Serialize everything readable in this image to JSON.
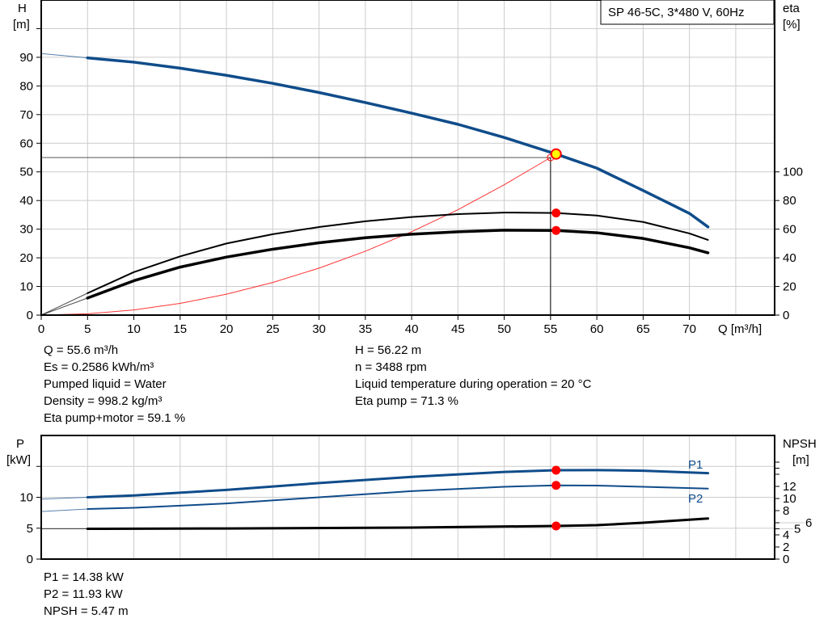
{
  "chart_data": [
    {
      "type": "line",
      "title": "SP 46-5C, 3*480 V, 60Hz",
      "xlabel": "Q [m³/h]",
      "ylabel_left": [
        "H",
        "[m]"
      ],
      "ylabel_right": [
        "eta",
        "[%]"
      ],
      "xlim": [
        0,
        79.2
      ],
      "ylim_left": [
        0,
        110
      ],
      "ylim_right": [
        0,
        220
      ],
      "x_ticks": [
        0,
        5,
        10,
        15,
        20,
        25,
        30,
        35,
        40,
        45,
        50,
        55,
        60,
        65,
        70
      ],
      "y_ticks_left": [
        0,
        10,
        20,
        30,
        40,
        50,
        60,
        70,
        80,
        90
      ],
      "y_ticks_right": [
        0,
        20,
        40,
        60,
        80,
        100
      ],
      "grid": true,
      "series": [
        {
          "key": "H",
          "axis": "left",
          "color": "#0f4c8a",
          "points": [
            [
              0,
              91.3
            ],
            [
              5,
              89.8
            ],
            [
              10,
              88.3
            ],
            [
              15,
              86.2
            ],
            [
              20,
              83.7
            ],
            [
              25,
              80.9
            ],
            [
              30,
              77.7
            ],
            [
              35,
              74.2
            ],
            [
              40,
              70.5
            ],
            [
              45,
              66.6
            ],
            [
              50,
              62.0
            ],
            [
              55.6,
              56.22
            ],
            [
              60,
              51.3
            ],
            [
              65,
              43.5
            ],
            [
              70,
              35.5
            ],
            [
              72,
              30.8
            ]
          ]
        },
        {
          "key": "eta_pump",
          "axis": "right",
          "color": "#000000",
          "points": [
            [
              0,
              0
            ],
            [
              5,
              15.3
            ],
            [
              10,
              30
            ],
            [
              15,
              41
            ],
            [
              20,
              50
            ],
            [
              25,
              56.5
            ],
            [
              30,
              61.5
            ],
            [
              35,
              65.5
            ],
            [
              40,
              68.5
            ],
            [
              45,
              70.5
            ],
            [
              50,
              71.6
            ],
            [
              55.6,
              71.3
            ],
            [
              60,
              69.5
            ],
            [
              65,
              65
            ],
            [
              70,
              57
            ],
            [
              72,
              52.5
            ]
          ]
        },
        {
          "key": "eta_pump_motor",
          "axis": "right",
          "color": "#000000",
          "points": [
            [
              0,
              0
            ],
            [
              5,
              11.9
            ],
            [
              10,
              24
            ],
            [
              15,
              33.5
            ],
            [
              20,
              40.5
            ],
            [
              25,
              46
            ],
            [
              30,
              50.5
            ],
            [
              35,
              54
            ],
            [
              40,
              56.5
            ],
            [
              45,
              58.2
            ],
            [
              50,
              59.3
            ],
            [
              55.6,
              59.1
            ],
            [
              60,
              57.5
            ],
            [
              65,
              53.5
            ],
            [
              70,
              47
            ],
            [
              72,
              43.5
            ]
          ]
        },
        {
          "key": "system_curve",
          "axis": "left",
          "color": "#ff0000",
          "points": [
            [
              0,
              0
            ],
            [
              5,
              0.45
            ],
            [
              10,
              1.8
            ],
            [
              15,
              4.1
            ],
            [
              20,
              7.3
            ],
            [
              25,
              11.4
            ],
            [
              30,
              16.4
            ],
            [
              35,
              22.3
            ],
            [
              40,
              29.1
            ],
            [
              45,
              36.8
            ],
            [
              50,
              45.5
            ],
            [
              55,
              55
            ]
          ]
        }
      ],
      "duty_point": {
        "q": 55,
        "h": 55
      },
      "operating_point": {
        "q": 55.6,
        "h": 56.22,
        "eta_pump": 71.3,
        "eta_pump_motor": 59.1
      }
    },
    {
      "type": "line",
      "ylabel_left": [
        "P",
        "[kW]"
      ],
      "ylabel_right": [
        "NPSH",
        "[m]"
      ],
      "xlim": [
        0,
        79.2
      ],
      "ylim_left": [
        0,
        20
      ],
      "ylim_right": [
        0,
        20.4
      ],
      "y_ticks_left": [
        0,
        5,
        10
      ],
      "y_ticks_right": [
        0,
        2,
        4,
        5,
        6,
        8,
        10,
        12
      ],
      "grid": true,
      "series": [
        {
          "name": "P1",
          "axis": "left",
          "color": "#0f4c8a",
          "points": [
            [
              0,
              9.7
            ],
            [
              5,
              10.0
            ],
            [
              10,
              10.3
            ],
            [
              20,
              11.2
            ],
            [
              30,
              12.3
            ],
            [
              40,
              13.3
            ],
            [
              50,
              14.1
            ],
            [
              55.6,
              14.38
            ],
            [
              60,
              14.4
            ],
            [
              65,
              14.3
            ],
            [
              72,
              13.9
            ]
          ]
        },
        {
          "name": "P2",
          "axis": "left",
          "color": "#0f4c8a",
          "points": [
            [
              0,
              7.7
            ],
            [
              5,
              8.1
            ],
            [
              10,
              8.3
            ],
            [
              20,
              9.0
            ],
            [
              30,
              10.0
            ],
            [
              40,
              11.0
            ],
            [
              50,
              11.7
            ],
            [
              55.6,
              11.93
            ],
            [
              60,
              11.9
            ],
            [
              65,
              11.7
            ],
            [
              72,
              11.4
            ]
          ]
        },
        {
          "key": "NPSH",
          "axis": "right",
          "color": "#000000",
          "points": [
            [
              0,
              5.0
            ],
            [
              5,
              5.0
            ],
            [
              20,
              5.05
            ],
            [
              40,
              5.2
            ],
            [
              55.6,
              5.47
            ],
            [
              60,
              5.6
            ],
            [
              65,
              6.0
            ],
            [
              72,
              6.7
            ]
          ]
        }
      ],
      "operating_point": {
        "q": 55.6,
        "p1": 14.38,
        "p2": 11.93,
        "npsh": 5.47
      }
    }
  ],
  "info_top_left": [
    "Q = 55.6 m³/h",
    "Es = 0.2586 kWh/m³",
    "Pumped liquid = Water",
    "Density = 998.2 kg/m³",
    "Eta pump+motor = 59.1 %"
  ],
  "info_top_right": [
    "H = 56.22 m",
    "n = 3488 rpm",
    "Liquid temperature during operation = 20 °C",
    "Eta pump = 71.3 %"
  ],
  "info_bottom": [
    "P1 = 14.38 kW",
    "P2 = 11.93 kW",
    "NPSH = 5.47 m"
  ],
  "colors": {
    "curve_blue": "#0f4c8a",
    "marker_red": "#ff0000",
    "operating_yellow": "#ffff00",
    "grid": "#cccccc"
  }
}
